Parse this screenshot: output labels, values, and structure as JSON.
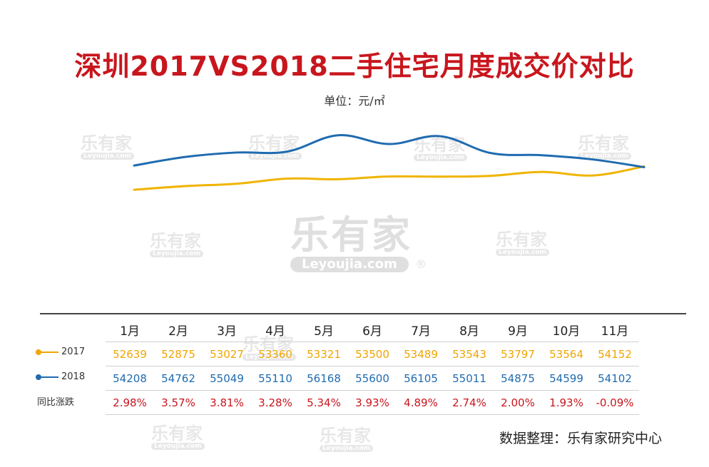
{
  "title": "深圳2017VS2018二手住宅月度成交价对比",
  "unit": "单位：元/㎡",
  "watermark": {
    "cn": "乐有家",
    "en": "Leyoujia.com",
    "mark": "®"
  },
  "source": "数据整理：乐有家研究中心",
  "table": {
    "rows": [
      {
        "label": "2017",
        "color": "#f0a500",
        "values": [
          "52639",
          "52875",
          "53027",
          "53360",
          "53321",
          "53500",
          "53489",
          "53543",
          "53797",
          "53564",
          "54152"
        ]
      },
      {
        "label": "2018",
        "color": "#1f6bb0",
        "values": [
          "54208",
          "54762",
          "55049",
          "55110",
          "56168",
          "55600",
          "56105",
          "55011",
          "54875",
          "54599",
          "54102"
        ]
      },
      {
        "label": "同比涨跌",
        "color": "#c8161d",
        "values": [
          "2.98%",
          "3.57%",
          "3.81%",
          "3.28%",
          "5.34%",
          "3.93%",
          "4.89%",
          "2.74%",
          "2.00%",
          "1.93%",
          "-0.09%"
        ]
      }
    ]
  },
  "chart_data": {
    "type": "line",
    "categories": [
      "1月",
      "2月",
      "3月",
      "4月",
      "5月",
      "6月",
      "7月",
      "8月",
      "9月",
      "10月",
      "11月"
    ],
    "series": [
      {
        "name": "2017",
        "color": "#f0b400",
        "values": [
          52639,
          52875,
          53027,
          53360,
          53321,
          53500,
          53489,
          53543,
          53797,
          53564,
          54152
        ]
      },
      {
        "name": "2018",
        "color": "#1f6bb0",
        "values": [
          54208,
          54762,
          55049,
          55110,
          56168,
          55600,
          56105,
          55011,
          54875,
          54599,
          54102
        ]
      }
    ],
    "title": "深圳2017VS2018二手住宅月度成交价对比",
    "ylabel": "单位：元/㎡",
    "ylim": [
      46000,
      58000
    ],
    "grid": false,
    "legend": "bottom-left"
  }
}
